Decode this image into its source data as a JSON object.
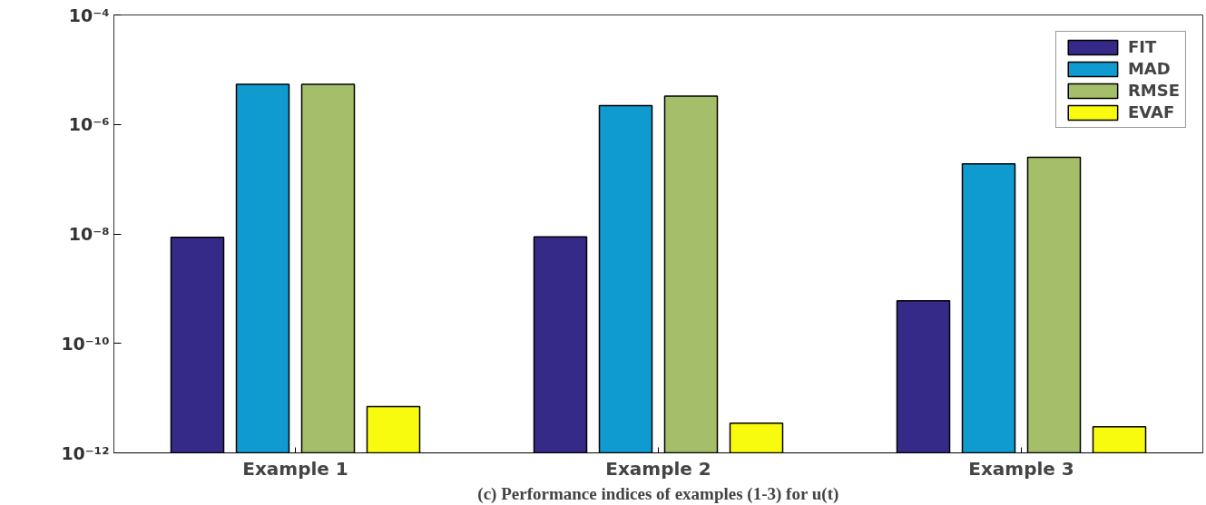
{
  "chart_data": {
    "type": "bar",
    "xlabel": "(c) Performance indices of examples (1-3) for u(t)",
    "categories": [
      "Example 1",
      "Example 2",
      "Example 3"
    ],
    "series": [
      {
        "name": "FIT",
        "color": "#352a87",
        "values": [
          8.7e-09,
          8.8e-09,
          6e-10
        ]
      },
      {
        "name": "MAD",
        "color": "#0f9bd0",
        "values": [
          5.4e-06,
          2.2e-06,
          1.9e-07
        ]
      },
      {
        "name": "RMSE",
        "color": "#a5be6a",
        "values": [
          5.4e-06,
          3.3e-06,
          2.5e-07
        ]
      },
      {
        "name": "EVAF",
        "color": "#f9fb0e",
        "values": [
          7e-12,
          3.5e-12,
          3e-12
        ]
      }
    ],
    "log": true,
    "ylim": [
      1e-12,
      0.0001
    ],
    "yticks": [
      {
        "value": 1e-12,
        "label": "10⁻¹²"
      },
      {
        "value": 1e-10,
        "label": "10⁻¹⁰"
      },
      {
        "value": 1e-08,
        "label": "10⁻⁸"
      },
      {
        "value": 1e-06,
        "label": "10⁻⁶"
      },
      {
        "value": 0.0001,
        "label": "10⁻⁴"
      }
    ],
    "grid": false,
    "legend": "top right"
  }
}
